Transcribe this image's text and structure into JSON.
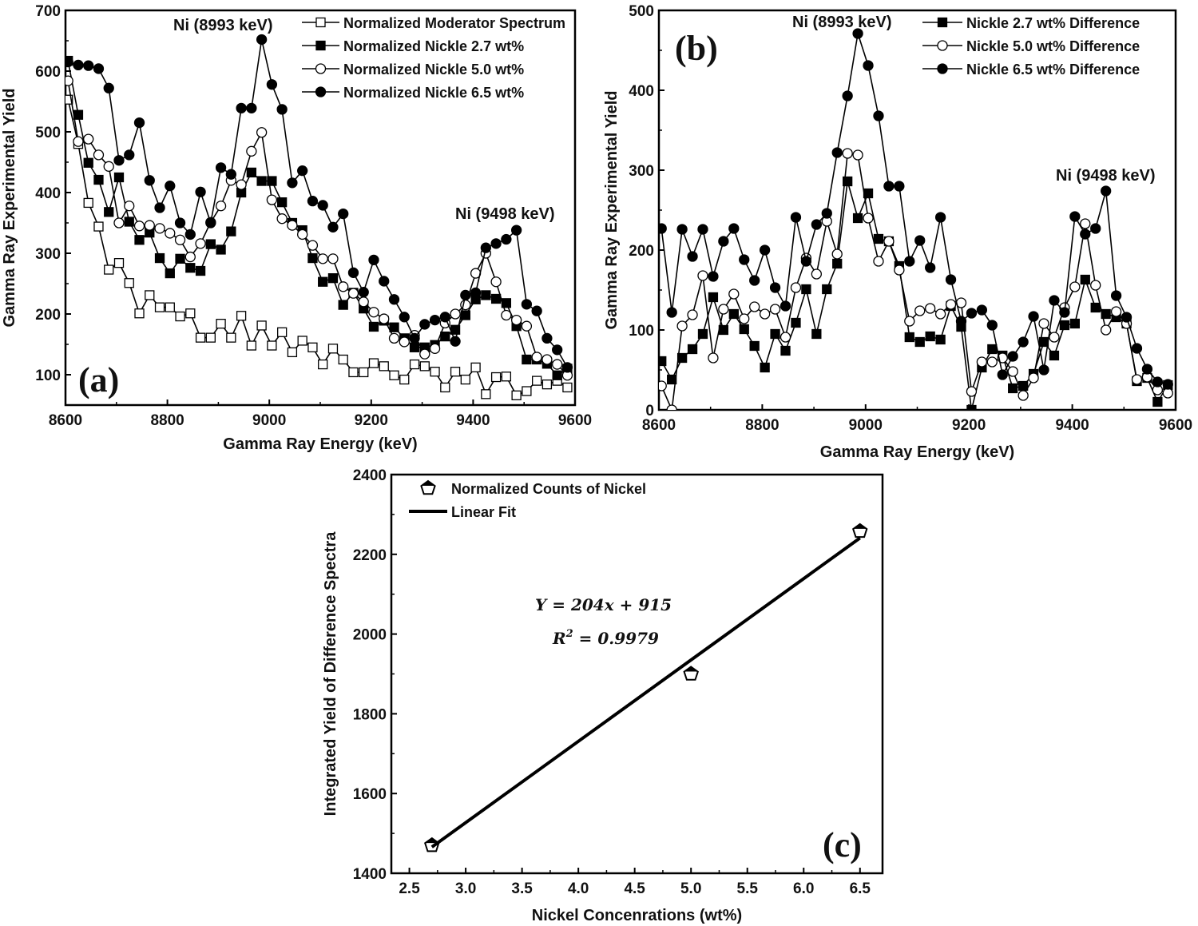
{
  "chart_data": [
    {
      "type": "line",
      "panel_label": "(a)",
      "xlabel": "Gamma Ray Energy (keV)",
      "ylabel": "Gamma Ray Experimental Yield",
      "xlim": [
        8600,
        9600
      ],
      "ylim": [
        50,
        700
      ],
      "xticks": [
        "8600",
        "8800",
        "9000",
        "9200",
        "9400",
        "9600"
      ],
      "yticks": [
        "100",
        "200",
        "300",
        "400",
        "500",
        "600",
        "700"
      ],
      "x_start": 8605,
      "x_step": 20,
      "annotations": [
        "Ni (8993 keV)",
        "Ni (9498 keV)"
      ],
      "legend_position": "top-right",
      "series": [
        {
          "name": "Normalized Moderator Spectrum",
          "marker": "open-square",
          "values": [
            553,
            480,
            383,
            344,
            273,
            284,
            251,
            201,
            231,
            211,
            211,
            196,
            201,
            161,
            161,
            184,
            161,
            197,
            148,
            181,
            148,
            170,
            137,
            156,
            145,
            117,
            143,
            125,
            104,
            104,
            119,
            114,
            99,
            92,
            117,
            114,
            105,
            79,
            105,
            92,
            112,
            68,
            96,
            97,
            66,
            73,
            90,
            84,
            90,
            79
          ]
        },
        {
          "name": "Normalized Nickle 2.7 wt%",
          "marker": "filled-square",
          "values": [
            617,
            528,
            449,
            421,
            368,
            425,
            352,
            322,
            334,
            292,
            267,
            291,
            276,
            271,
            315,
            306,
            336,
            400,
            433,
            419,
            419,
            384,
            350,
            338,
            292,
            253,
            259,
            215,
            235,
            209,
            179,
            189,
            178,
            160,
            145,
            145,
            149,
            163,
            174,
            198,
            224,
            231,
            225,
            218,
            180,
            125,
            125,
            118,
            99,
            110
          ]
        },
        {
          "name": "Normalized Nickle 5.0 wt%",
          "marker": "open-circle",
          "values": [
            584,
            484,
            488,
            462,
            443,
            350,
            378,
            345,
            346,
            341,
            333,
            322,
            294,
            316,
            351,
            378,
            420,
            413,
            468,
            499,
            388,
            357,
            346,
            331,
            313,
            291,
            291,
            245,
            234,
            220,
            203,
            192,
            160,
            154,
            165,
            134,
            143,
            185,
            200,
            215,
            267,
            300,
            253,
            198,
            190,
            180,
            129,
            125,
            117,
            99
          ]
        },
        {
          "name": "Normalized Nickle 6.5 wt%",
          "marker": "filled-circle",
          "values": [
            615,
            610,
            609,
            604,
            572,
            453,
            462,
            515,
            420,
            375,
            411,
            350,
            331,
            401,
            350,
            441,
            430,
            539,
            539,
            652,
            578,
            537,
            416,
            436,
            386,
            379,
            343,
            365,
            268,
            236,
            289,
            254,
            224,
            195,
            160,
            183,
            190,
            195,
            155,
            231,
            235,
            309,
            316,
            323,
            338,
            216,
            205,
            160,
            141,
            112
          ]
        }
      ]
    },
    {
      "type": "line",
      "panel_label": "(b)",
      "xlabel": "Gamma Ray Energy (keV)",
      "ylabel": "Gamma Ray Experimental Yield",
      "xlim": [
        8600,
        9600
      ],
      "ylim": [
        0,
        500
      ],
      "xticks": [
        "8600",
        "8800",
        "9000",
        "9200",
        "9400",
        "9600"
      ],
      "yticks": [
        "0",
        "100",
        "200",
        "300",
        "400",
        "500"
      ],
      "x_start": 8605,
      "x_step": 20,
      "annotations": [
        "Ni (8993 keV)",
        "Ni (9498 keV)"
      ],
      "legend_position": "top-right",
      "series": [
        {
          "name": "Nickle 2.7 wt% Difference",
          "marker": "filled-square",
          "values": [
            61,
            38,
            65,
            76,
            95,
            141,
            100,
            120,
            101,
            80,
            53,
            95,
            74,
            109,
            151,
            95,
            151,
            183,
            286,
            240,
            271,
            214,
            211,
            180,
            91,
            85,
            92,
            88,
            130,
            104,
            0,
            53,
            76,
            68,
            27,
            30,
            45,
            85,
            68,
            106,
            108,
            163,
            128,
            120,
            116,
            108,
            36,
            40,
            10,
            31
          ]
        },
        {
          "name": "Nickle 5.0 wt% Difference",
          "marker": "open-circle",
          "values": [
            30,
            0,
            105,
            119,
            168,
            65,
            126,
            145,
            114,
            129,
            120,
            126,
            91,
            153,
            190,
            170,
            236,
            195,
            321,
            319,
            240,
            186,
            211,
            175,
            111,
            124,
            127,
            120,
            132,
            134,
            23,
            60,
            60,
            65,
            48,
            18,
            40,
            108,
            91,
            128,
            154,
            233,
            156,
            100,
            123,
            108,
            38,
            41,
            25,
            21
          ]
        },
        {
          "name": "Nickle 6.5 wt% Difference",
          "marker": "filled-circle",
          "values": [
            227,
            122,
            226,
            192,
            226,
            167,
            211,
            227,
            188,
            162,
            200,
            153,
            130,
            241,
            186,
            232,
            246,
            322,
            393,
            471,
            431,
            368,
            280,
            280,
            186,
            212,
            178,
            241,
            163,
            111,
            121,
            125,
            106,
            44,
            67,
            85,
            117,
            50,
            137,
            122,
            242,
            220,
            227,
            274,
            143,
            116,
            77,
            51,
            35,
            32
          ]
        }
      ]
    },
    {
      "type": "scatter",
      "panel_label": "(c)",
      "xlabel": "Nickel Concenrations (wt%)",
      "ylabel": "Integrated Yield of Difference Spectra",
      "xlim": [
        2.34,
        6.7
      ],
      "ylim": [
        1400,
        2400
      ],
      "xticks": [
        "2.5",
        "3.0",
        "3.5",
        "4.0",
        "4.5",
        "5.0",
        "5.5",
        "6.0",
        "6.5"
      ],
      "yticks": [
        "1400",
        "1600",
        "1800",
        "2000",
        "2200",
        "2400"
      ],
      "legend_position": "top-left",
      "series": [
        {
          "name": "Normalized Counts of Nickel",
          "marker": "pentagon",
          "x": [
            2.7,
            5.0,
            6.5
          ],
          "values": [
            1470,
            1900,
            2258
          ]
        },
        {
          "name": "Linear Fit",
          "marker": "line",
          "slope": 204,
          "intercept": 915,
          "x": [
            2.7,
            6.5
          ]
        }
      ],
      "equation": "Y  =  204x + 915",
      "r_squared_label": "R",
      "r_squared_exp": "2",
      "r_squared_value": "  =  0.9979"
    }
  ]
}
